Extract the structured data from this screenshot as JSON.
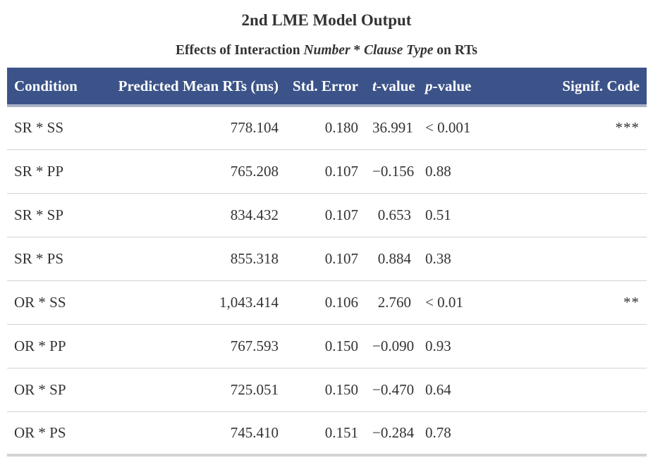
{
  "title": "2nd LME Model Output",
  "subtitle": {
    "prefix": "Effects of Interaction ",
    "term1": "Number",
    "sep": " * ",
    "term2": "Clause Type",
    "suffix": " on RTs"
  },
  "headers": {
    "condition": "Condition",
    "predicted": "Predicted Mean RTs (ms)",
    "std_error": "Std. Error",
    "t_italic": "t",
    "t_rest": "-value",
    "p_italic": "p",
    "p_rest": "-value",
    "signif": "Signif. Code"
  },
  "rows": [
    {
      "condition": "SR * SS",
      "predicted": "778.104",
      "std_error": "0.180",
      "t_value": "36.991",
      "p_value": "< 0.001",
      "signif": "***"
    },
    {
      "condition": "SR * PP",
      "predicted": "765.208",
      "std_error": "0.107",
      "t_value": "−0.156",
      "p_value": "0.88",
      "signif": ""
    },
    {
      "condition": "SR * SP",
      "predicted": "834.432",
      "std_error": "0.107",
      "t_value": "0.653",
      "p_value": "0.51",
      "signif": ""
    },
    {
      "condition": "SR * PS",
      "predicted": "855.318",
      "std_error": "0.107",
      "t_value": "0.884",
      "p_value": "0.38",
      "signif": ""
    },
    {
      "condition": "OR * SS",
      "predicted": "1,043.414",
      "std_error": "0.106",
      "t_value": "2.760",
      "p_value": "< 0.01",
      "signif": "**"
    },
    {
      "condition": "OR * PP",
      "predicted": "767.593",
      "std_error": "0.150",
      "t_value": "−0.090",
      "p_value": "0.93",
      "signif": ""
    },
    {
      "condition": "OR * SP",
      "predicted": "725.051",
      "std_error": "0.150",
      "t_value": "−0.470",
      "p_value": "0.64",
      "signif": ""
    },
    {
      "condition": "OR * PS",
      "predicted": "745.410",
      "std_error": "0.151",
      "t_value": "−0.284",
      "p_value": "0.78",
      "signif": ""
    }
  ],
  "colors": {
    "header_bg": "#3b5388",
    "header_text": "#ffffff",
    "body_text": "#333333",
    "row_rule": "#d3d3d3"
  }
}
